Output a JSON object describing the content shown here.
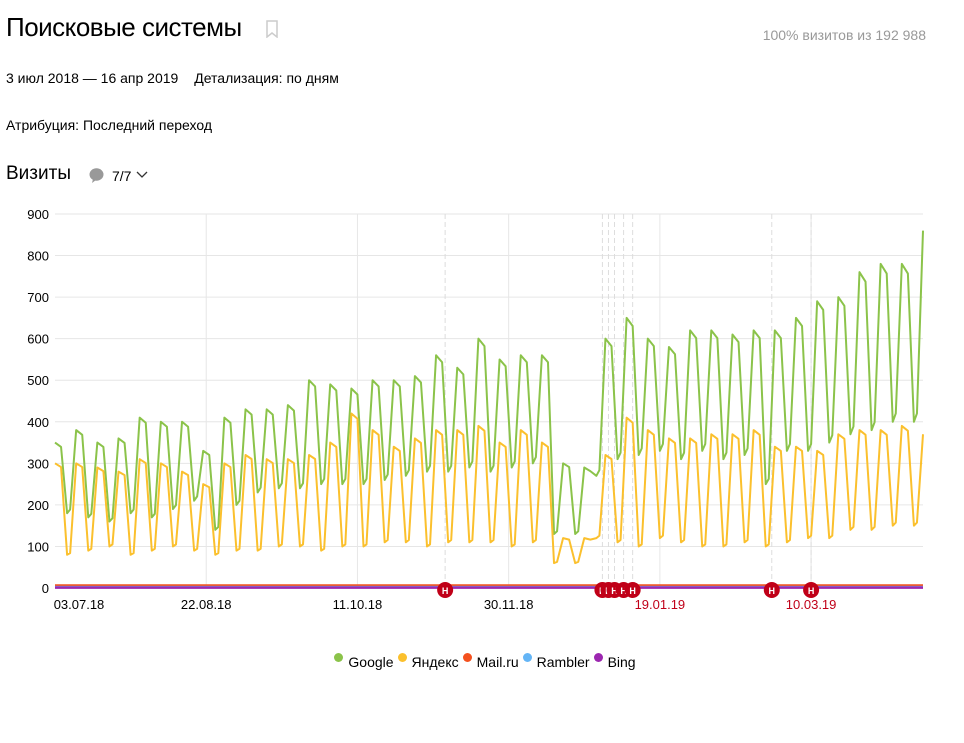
{
  "header": {
    "title": "Поисковые системы",
    "share": "100% визитов из 192 988",
    "bookmark_icon": "bookmark-icon"
  },
  "filters": {
    "period": "3 июл 2018 — 16 апр 2019",
    "detail": "Детализация: по дням",
    "attribution": "Атрибуция: Последний переход"
  },
  "metric": {
    "label": "Визиты",
    "count": "7/7",
    "comment_icon": "speech-bubble-icon",
    "dropdown_icon": "chevron-down-icon"
  },
  "chart_data": {
    "type": "line",
    "xlim": [
      "2018-07-03",
      "2019-04-16"
    ],
    "ylim": [
      0,
      900
    ],
    "yticks": [
      0,
      100,
      200,
      300,
      400,
      500,
      600,
      700,
      800,
      900
    ],
    "xticks": [
      {
        "date": "2018-07-03",
        "label": "03.07.18",
        "color": "#000000"
      },
      {
        "date": "2018-08-22",
        "label": "22.08.18",
        "color": "#000000"
      },
      {
        "date": "2018-10-11",
        "label": "11.10.18",
        "color": "#000000"
      },
      {
        "date": "2018-11-30",
        "label": "30.11.18",
        "color": "#000000"
      },
      {
        "date": "2019-01-19",
        "label": "19.01.19",
        "color": "#c00018"
      },
      {
        "date": "2019-03-10",
        "label": "10.03.19",
        "color": "#c00018"
      }
    ],
    "grid": true,
    "legend_position": "bottom",
    "week_starts": [
      "2018-07-02",
      "2018-07-09",
      "2018-07-16",
      "2018-07-23",
      "2018-07-30",
      "2018-08-06",
      "2018-08-13",
      "2018-08-20",
      "2018-08-27",
      "2018-09-03",
      "2018-09-10",
      "2018-09-17",
      "2018-09-24",
      "2018-10-01",
      "2018-10-08",
      "2018-10-15",
      "2018-10-22",
      "2018-10-29",
      "2018-11-05",
      "2018-11-12",
      "2018-11-19",
      "2018-11-26",
      "2018-12-03",
      "2018-12-10",
      "2018-12-17",
      "2018-12-24",
      "2018-12-31",
      "2019-01-07",
      "2019-01-14",
      "2019-01-21",
      "2019-01-28",
      "2019-02-04",
      "2019-02-11",
      "2019-02-18",
      "2019-02-25",
      "2019-03-04",
      "2019-03-11",
      "2019-03-18",
      "2019-03-25",
      "2019-04-01",
      "2019-04-08",
      "2019-04-15"
    ],
    "series": [
      {
        "name": "Google",
        "color": "#8bc34a",
        "weekday_high": [
          350,
          380,
          350,
          360,
          410,
          400,
          400,
          330,
          410,
          430,
          430,
          440,
          500,
          490,
          480,
          500,
          500,
          510,
          560,
          530,
          600,
          550,
          560,
          560,
          300,
          290,
          600,
          650,
          600,
          580,
          620,
          620,
          610,
          620,
          620,
          650,
          690,
          700,
          760,
          780,
          780,
          860
        ],
        "weekend_low": [
          180,
          170,
          160,
          180,
          170,
          190,
          210,
          140,
          200,
          230,
          240,
          240,
          250,
          250,
          250,
          260,
          270,
          280,
          280,
          290,
          280,
          290,
          300,
          130,
          130,
          270,
          310,
          320,
          330,
          310,
          330,
          310,
          320,
          250,
          330,
          330,
          350,
          370,
          380,
          400,
          400,
          440
        ]
      },
      {
        "name": "Яндекс",
        "color": "#fbc02d",
        "weekday_high": [
          300,
          300,
          290,
          280,
          310,
          300,
          280,
          250,
          300,
          320,
          310,
          310,
          320,
          350,
          420,
          380,
          340,
          360,
          380,
          380,
          390,
          350,
          380,
          350,
          120,
          120,
          320,
          410,
          380,
          360,
          360,
          370,
          370,
          380,
          340,
          340,
          330,
          370,
          380,
          380,
          390,
          370
        ],
        "weekend_low": [
          80,
          90,
          100,
          80,
          90,
          100,
          90,
          80,
          90,
          90,
          100,
          100,
          90,
          100,
          100,
          110,
          110,
          100,
          110,
          110,
          110,
          100,
          110,
          60,
          60,
          120,
          110,
          100,
          120,
          110,
          100,
          100,
          110,
          100,
          110,
          120,
          120,
          140,
          140,
          150,
          150,
          320
        ]
      },
      {
        "name": "Mail.ru",
        "color": "#f4511e",
        "level": 6
      },
      {
        "name": "Rambler",
        "color": "#64b5f6",
        "level": 2
      },
      {
        "name": "Bing",
        "color": "#9c27b0",
        "level": 1
      }
    ],
    "annotations": [
      {
        "date": "2018-11-09",
        "label": "Н"
      },
      {
        "date": "2018-12-31",
        "label": "Н"
      },
      {
        "date": "2019-01-02",
        "label": "Н"
      },
      {
        "date": "2019-01-04",
        "label": "Н"
      },
      {
        "date": "2019-01-07",
        "label": "Н"
      },
      {
        "date": "2019-01-10",
        "label": "Н"
      },
      {
        "date": "2019-02-25",
        "label": "Н"
      },
      {
        "date": "2019-03-10",
        "label": "Н"
      }
    ],
    "annotation_color": "#c00018"
  }
}
